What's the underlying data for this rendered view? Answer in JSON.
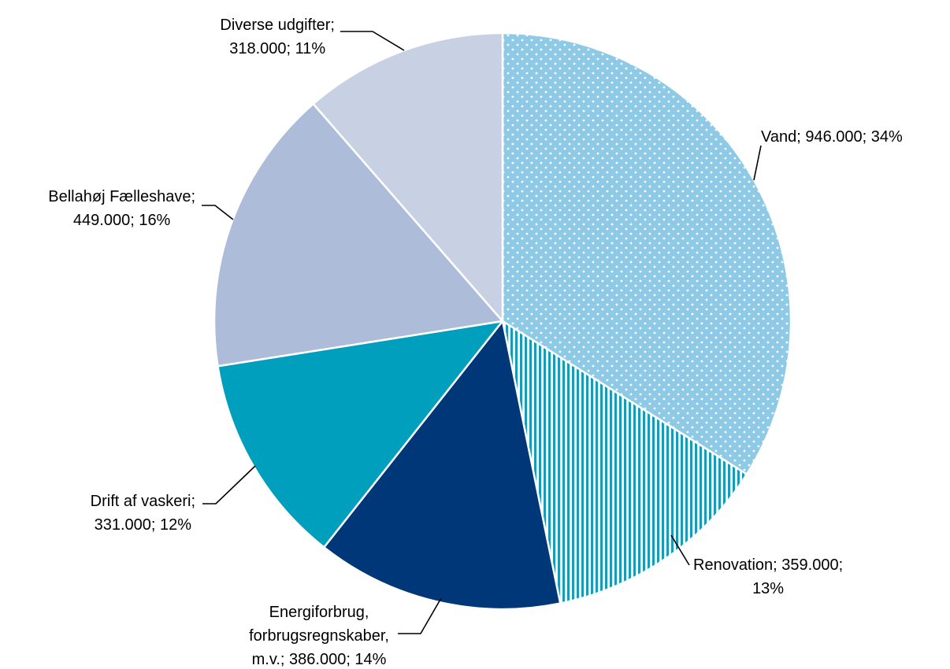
{
  "chart_data": {
    "type": "pie",
    "start_angle_deg": 0,
    "direction": "clockwise",
    "slices": [
      {
        "name": "Vand",
        "value": 946000,
        "percent": 34,
        "color": "#8ECAE6",
        "pattern": "dots",
        "label_lines": [
          "Vand; 946.000; 34%"
        ]
      },
      {
        "name": "Renovation",
        "value": 359000,
        "percent": 13,
        "color": "#1B9AB5",
        "pattern": "vertical-stripes",
        "label_lines": [
          "Renovation; 359.000;",
          "13%"
        ]
      },
      {
        "name": "Energiforbrug, forbrugsregnskaber, m.v.",
        "value": 386000,
        "percent": 14,
        "color": "#003778",
        "pattern": "solid",
        "label_lines": [
          "Energiforbrug,",
          "forbrugsregnskaber,",
          "m.v.; 386.000; 14%"
        ]
      },
      {
        "name": "Drift af vaskeri",
        "value": 331000,
        "percent": 12,
        "color": "#009FBE",
        "pattern": "solid",
        "label_lines": [
          "Drift af vaskeri;",
          "331.000; 12%"
        ]
      },
      {
        "name": "Bellahøj Fælleshave",
        "value": 449000,
        "percent": 16,
        "color": "#ADBDD9",
        "pattern": "solid",
        "label_lines": [
          "Bellahøj Fælleshave;",
          "449.000; 16%"
        ]
      },
      {
        "name": "Diverse udgifter",
        "value": 318000,
        "percent": 11,
        "color": "#C8D0E4",
        "pattern": "solid",
        "label_lines": [
          "Diverse udgifter;",
          "318.000; 11%"
        ]
      }
    ],
    "legend": "none",
    "title": ""
  }
}
